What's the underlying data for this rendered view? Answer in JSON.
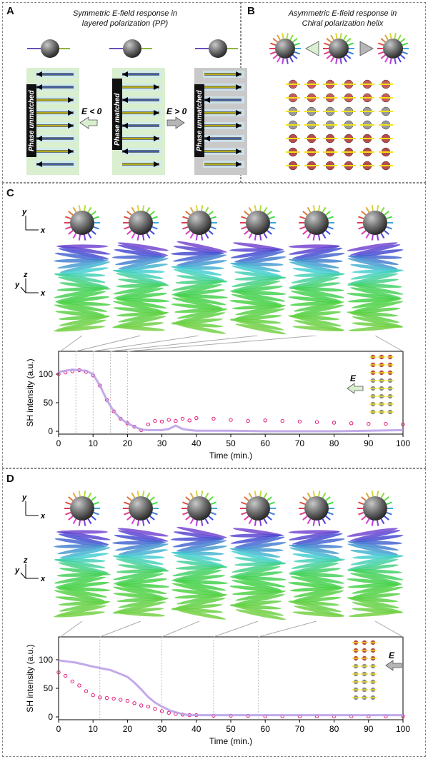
{
  "panels": {
    "A": {
      "label": "A",
      "title_line1": "Symmetric E-field response in",
      "title_line2": "layered polarization (PP)",
      "left_tag": "Phase unmatched",
      "center_tag": "Phase matched",
      "right_tag": "Phase unmatched",
      "field_neg": "E < 0",
      "field_pos": "E > 0"
    },
    "B": {
      "label": "B",
      "title_line1": "Asymmetric E-field response in",
      "title_line2": "Chiral polarization helix"
    },
    "C": {
      "label": "C",
      "field_label": "E",
      "axes_xy": {
        "y": "y",
        "x": "x"
      },
      "axes_xyz": {
        "z": "z",
        "y": "y",
        "x": "x"
      }
    },
    "D": {
      "label": "D",
      "field_label": "E",
      "axes_xy": {
        "y": "y",
        "x": "x"
      },
      "axes_xyz": {
        "z": "z",
        "y": "y",
        "x": "x"
      }
    }
  },
  "colors": {
    "light_green": "#d9efcf",
    "gray_band": "#c9c9c9",
    "magenta": "#e2197a",
    "lavender": "#b79be6",
    "arrow_yellow": "#f2e21a",
    "arrow_blue": "#1d3f8a",
    "sphere": "#6f6f6f"
  },
  "chart_data": [
    {
      "type": "scatter",
      "title": "",
      "xlabel": "Time (min.)",
      "ylabel": "SH intensity (a.u.)",
      "xlim": [
        0,
        100
      ],
      "ylim": [
        -5,
        140
      ],
      "xticks": [
        0,
        10,
        20,
        30,
        40,
        50,
        60,
        70,
        80,
        90,
        100
      ],
      "yticks": [
        0,
        50,
        100
      ],
      "markers": [
        5,
        10,
        15,
        20
      ],
      "series": [
        {
          "kind": "points",
          "x": [
            0,
            2,
            4,
            6,
            8,
            10,
            12,
            14,
            16,
            18,
            20,
            22,
            24,
            26,
            28,
            30,
            32,
            34,
            36,
            38,
            40,
            45,
            50,
            55,
            60,
            65,
            70,
            75,
            80,
            85,
            90,
            95,
            100
          ],
          "values": [
            100,
            103,
            105,
            107,
            104,
            98,
            80,
            55,
            35,
            22,
            14,
            8,
            2,
            12,
            18,
            17,
            20,
            18,
            22,
            19,
            23,
            22,
            20,
            18,
            19,
            18,
            17,
            16,
            15,
            14,
            13,
            13,
            12
          ]
        },
        {
          "kind": "line",
          "x": [
            0,
            4,
            8,
            10,
            12,
            14,
            16,
            18,
            20,
            22,
            24,
            26,
            28,
            30,
            32,
            34,
            36,
            38,
            40,
            50,
            60,
            70,
            80,
            90,
            100
          ],
          "values": [
            104,
            108,
            106,
            100,
            80,
            55,
            35,
            22,
            14,
            8,
            3,
            2,
            2,
            2,
            4,
            10,
            4,
            2,
            1,
            1,
            0,
            0,
            0,
            1,
            2
          ]
        }
      ]
    },
    {
      "type": "scatter",
      "title": "",
      "xlabel": "Time (min.)",
      "ylabel": "SH intensity (a.u.)",
      "xlim": [
        0,
        100
      ],
      "ylim": [
        -5,
        140
      ],
      "xticks": [
        0,
        10,
        20,
        30,
        40,
        50,
        60,
        70,
        80,
        90,
        100
      ],
      "yticks": [
        0,
        50,
        100
      ],
      "markers": [
        12,
        30,
        45,
        58
      ],
      "series": [
        {
          "kind": "points",
          "x": [
            0,
            2,
            4,
            6,
            8,
            10,
            12,
            14,
            16,
            18,
            20,
            22,
            24,
            26,
            28,
            30,
            32,
            34,
            36,
            38,
            40,
            45,
            50,
            55,
            60,
            65,
            70,
            75,
            80,
            85,
            90,
            95,
            100
          ],
          "values": [
            78,
            72,
            62,
            55,
            45,
            38,
            34,
            33,
            32,
            30,
            28,
            24,
            20,
            18,
            14,
            10,
            7,
            5,
            4,
            3,
            3,
            2,
            2,
            2,
            1,
            1,
            1,
            1,
            1,
            1,
            1,
            1,
            1
          ]
        },
        {
          "kind": "line",
          "x": [
            0,
            5,
            10,
            15,
            18,
            20,
            22,
            24,
            26,
            28,
            30,
            32,
            34,
            36,
            38,
            40,
            45,
            50,
            60,
            70,
            80,
            90,
            100
          ],
          "values": [
            99,
            95,
            88,
            82,
            75,
            70,
            60,
            48,
            35,
            25,
            18,
            12,
            8,
            5,
            3,
            3,
            3,
            3,
            3,
            3,
            3,
            3,
            3
          ]
        }
      ]
    }
  ]
}
